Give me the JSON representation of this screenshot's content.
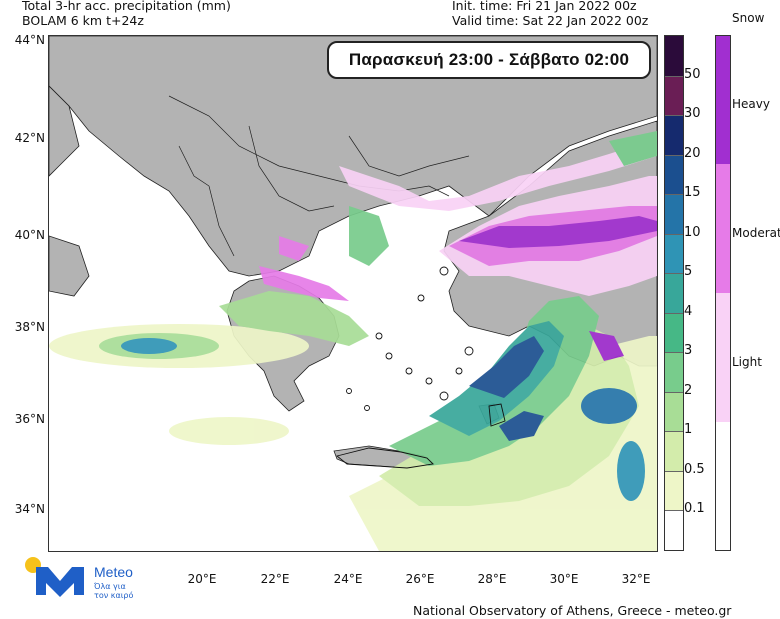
{
  "header": {
    "left_line1": "Total 3-hr acc. precipitation (mm)",
    "left_line2": "BOLAM 6 km t+24z",
    "right_line1": "Init. time: Fri 21 Jan 2022 00z",
    "right_line2": "Valid time: Sat 22 Jan 2022 00z"
  },
  "banner": "Παρασκευή 23:00 - Σάββατο 02:00",
  "lat_labels": [
    "44°N",
    "42°N",
    "40°N",
    "38°N",
    "36°N",
    "34°N"
  ],
  "lon_labels": [
    "20°E",
    "22°E",
    "24°E",
    "26°E",
    "28°E",
    "30°E",
    "32°E"
  ],
  "precip_colorbar": {
    "labels": [
      "50",
      "30",
      "20",
      "15",
      "10",
      "5",
      "4",
      "3",
      "2",
      "1",
      "0.5",
      "0.1"
    ],
    "colors": [
      "#2b0b3a",
      "#6a1e55",
      "#152a6e",
      "#1b4f8f",
      "#2474a8",
      "#2f94b5",
      "#38a79a",
      "#46b886",
      "#78cc8c",
      "#a8dd96",
      "#d3ecab",
      "#eef6c8",
      "#ffffff"
    ]
  },
  "snow_colorbar": {
    "title": "Snow",
    "labels": [
      "Heavy",
      "Moderate",
      "Light"
    ],
    "colors": [
      "#a12fd0",
      "#e67be8",
      "#f9d2f6",
      "#ffffff"
    ]
  },
  "footer": "National Observatory of Athens, Greece - meteo.gr",
  "logo": {
    "brand": "Meteo",
    "tagline_1": "Όλα για",
    "tagline_2": "τον καιρό",
    "colors": {
      "sun": "#f6c21b",
      "mark": "#1f5fc7"
    }
  },
  "map_colors": {
    "land": "#b3b3b3",
    "sea": "#ffffff",
    "border": "#222222"
  }
}
